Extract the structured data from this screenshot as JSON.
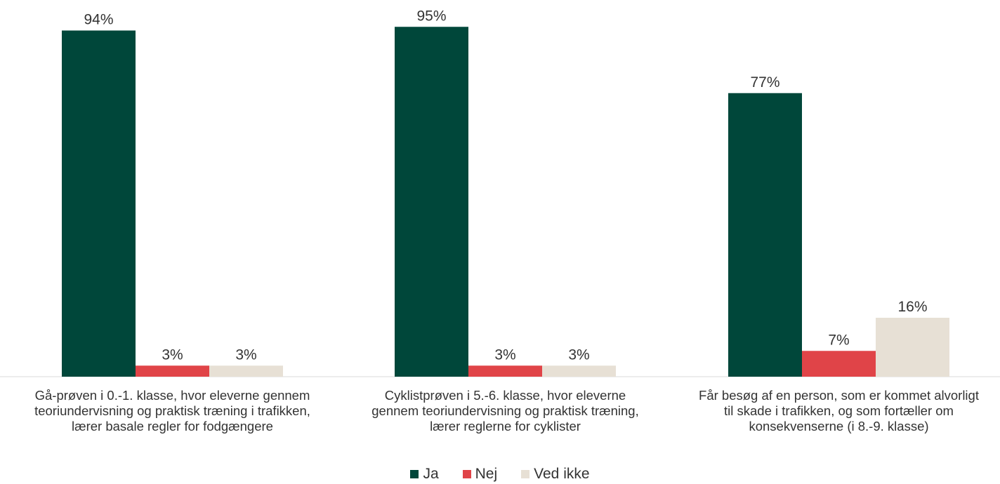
{
  "chart_data": {
    "type": "bar",
    "title": "",
    "xlabel": "",
    "ylabel": "",
    "ylim": [
      0,
      100
    ],
    "grid": false,
    "legend_position": "bottom-center",
    "categories": [
      "Gå-prøven i 0.-1. klasse, hvor eleverne gennem teoriundervisning og praktisk træning i trafikken, lærer basale regler for fodgængere",
      "Cyklistprøven i 5.-6. klasse, hvor eleverne gennem teoriundervisning og praktisk træning, lærer reglerne for cyklister",
      "Får besøg af en person, som er kommet alvorligt til skade i trafikken, og som fortæller om konsekvenserne (i 8.-9. klasse)"
    ],
    "category_lines": [
      [
        "Gå-prøven i 0.-1. klasse, hvor eleverne gennem",
        "teoriundervisning og praktisk træning i trafikken,",
        "lærer basale regler for fodgængere"
      ],
      [
        "Cyklistprøven i 5.-6. klasse, hvor eleverne",
        "gennem teoriundervisning og praktisk træning,",
        "lærer reglerne for cyklister"
      ],
      [
        "Får besøg af en person, som er kommet alvorligt",
        "til skade i trafikken, og som fortæller om",
        "konsekvenserne (i 8.-9. klasse)"
      ]
    ],
    "series": [
      {
        "name": "Ja",
        "values": [
          94,
          95,
          77
        ],
        "labels": [
          "94%",
          "95%",
          "77%"
        ],
        "color": "#00473a"
      },
      {
        "name": "Nej",
        "values": [
          3,
          3,
          7
        ],
        "labels": [
          "3%",
          "3%",
          "7%"
        ],
        "color": "#e04448"
      },
      {
        "name": "Ved ikke",
        "values": [
          3,
          3,
          16
        ],
        "labels": [
          "3%",
          "3%",
          "16%"
        ],
        "color": "#e7e0d5"
      }
    ]
  }
}
